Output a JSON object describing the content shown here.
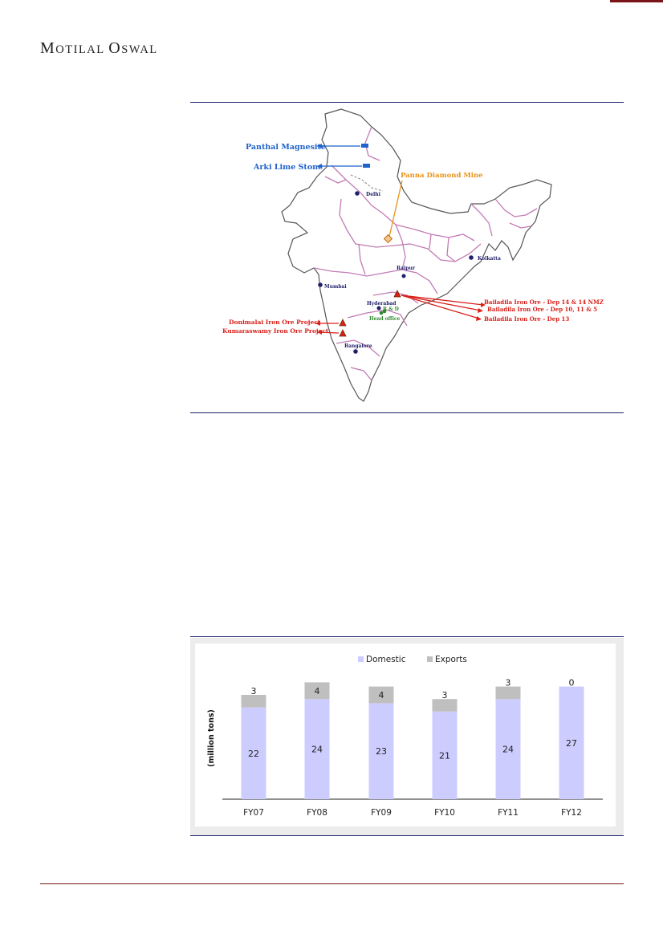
{
  "header": {
    "brand_cap1": "M",
    "brand_rest1": "OTILAL ",
    "brand_cap2": "O",
    "brand_rest2": "SWAL"
  },
  "map": {
    "colors": {
      "blue": "#1f62c9",
      "orange": "#e99319",
      "red": "#d9201a",
      "green": "#2f8a2f",
      "navy": "#20206a",
      "border": "#c27bb4"
    },
    "labels": {
      "panthal": "Panthal Magnesite",
      "arki": "Arki Lime Stone",
      "panna": "Panna Diamond Mine",
      "delhi": "Delhi",
      "kolkata": "Kolkatta",
      "raipur": "Raipur",
      "mumbai": "Mumbai",
      "hyderabad": "Hyderabad",
      "rd": "R & D",
      "headoffice": "Head office",
      "bangalore": "Bangalore",
      "bailadila1": "Bailadila Iron Ore - Dep 14 & 14 NMZ",
      "bailadila2": "Bailadila Iron Ore - Dep 10, 11 & 5",
      "bailadila3": "Bailadila Iron Ore - Dep 13",
      "donimalai": "Donimalai Iron Ore Project",
      "kumaraswamy": "Kumaraswamy Iron Ore Project"
    }
  },
  "chart_data": {
    "type": "bar",
    "stacked": true,
    "categories": [
      "FY07",
      "FY08",
      "FY09",
      "FY10",
      "FY11",
      "FY12"
    ],
    "series": [
      {
        "name": "Domestic",
        "values": [
          22,
          24,
          23,
          21,
          24,
          27
        ],
        "color": "#ccccff"
      },
      {
        "name": "Exports",
        "values": [
          3,
          4,
          4,
          3,
          3,
          0
        ],
        "color": "#bfbfbf"
      }
    ],
    "ylabel": "(million tons)",
    "legend_position": "top",
    "grid": false
  }
}
